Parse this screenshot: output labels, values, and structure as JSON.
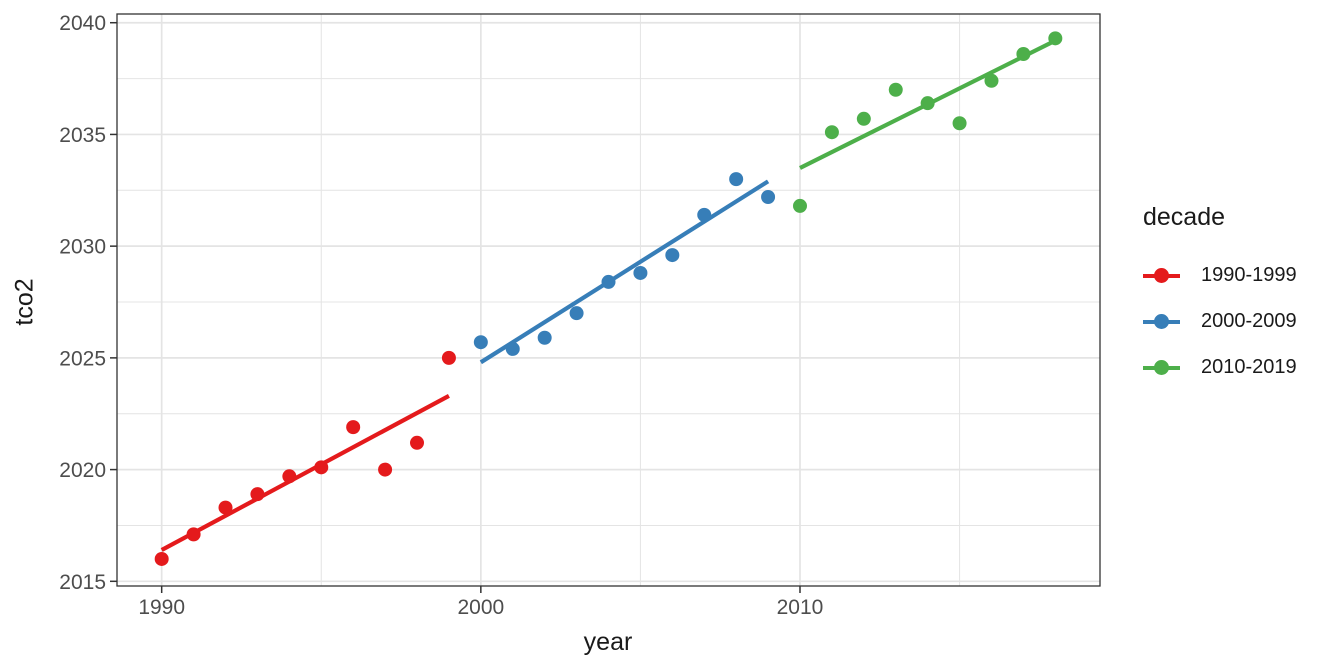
{
  "chart_data": {
    "type": "scatter",
    "title": "",
    "xlabel": "year",
    "ylabel": "tco2",
    "xlim": [
      1988.6,
      2019.4
    ],
    "ylim": [
      2014.79,
      2040.39
    ],
    "grid": true,
    "x_major_ticks": [
      1990,
      2000,
      2010
    ],
    "x_minor_gridlines": [
      1995,
      2005,
      2015
    ],
    "y_major_ticks": [
      2015,
      2020,
      2025,
      2030,
      2035,
      2040
    ],
    "y_minor_gridlines": [
      2017.5,
      2022.5,
      2027.5,
      2032.5,
      2037.5
    ],
    "legend_position": "right",
    "legend_title": "decade",
    "series": [
      {
        "name": "1990-1999",
        "color": "#E41A1C",
        "x": [
          1990,
          1991,
          1992,
          1993,
          1994,
          1995,
          1996,
          1997,
          1998,
          1999
        ],
        "y": [
          2016.0,
          2017.1,
          2018.3,
          2018.9,
          2019.7,
          2020.1,
          2021.9,
          2020.0,
          2021.2,
          2025.0
        ],
        "trend": {
          "x": [
            1990,
            1999
          ],
          "y": [
            2016.4,
            2023.3
          ]
        }
      },
      {
        "name": "2000-2009",
        "color": "#377EB8",
        "x": [
          2000,
          2001,
          2002,
          2003,
          2004,
          2005,
          2006,
          2007,
          2008,
          2009
        ],
        "y": [
          2025.7,
          2025.4,
          2025.9,
          2027.0,
          2028.4,
          2028.8,
          2029.6,
          2031.4,
          2033.0,
          2032.2
        ],
        "trend": {
          "x": [
            2000,
            2009
          ],
          "y": [
            2024.8,
            2032.9
          ]
        }
      },
      {
        "name": "2010-2019",
        "color": "#4DAF4A",
        "x": [
          2010,
          2011,
          2012,
          2013,
          2014,
          2015,
          2016,
          2017,
          2018
        ],
        "y": [
          2031.8,
          2035.1,
          2035.7,
          2037.0,
          2036.4,
          2035.5,
          2037.4,
          2038.6,
          2039.3
        ],
        "trend": {
          "x": [
            2010,
            2018
          ],
          "y": [
            2033.5,
            2039.2
          ]
        }
      }
    ],
    "theme": {
      "panel_background": "#ffffff",
      "panel_border_color": "#333333",
      "grid_color": "#e4e4e4",
      "tick_color": "#333333",
      "tick_label_color": "#4d4d4d",
      "axis_title_color": "#1a1a1a",
      "point_radius": 7,
      "line_width": 4.2
    }
  }
}
